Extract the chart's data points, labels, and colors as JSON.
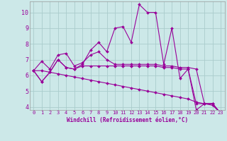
{
  "xlabel": "Windchill (Refroidissement éolien,°C)",
  "bg_color": "#cce8e8",
  "line_color": "#990099",
  "grid_color": "#aacccc",
  "xlim": [
    -0.5,
    23.5
  ],
  "ylim": [
    3.8,
    10.7
  ],
  "xticks": [
    0,
    1,
    2,
    3,
    4,
    5,
    6,
    7,
    8,
    9,
    10,
    11,
    12,
    13,
    14,
    15,
    16,
    17,
    18,
    19,
    20,
    21,
    22,
    23
  ],
  "yticks": [
    4,
    5,
    6,
    7,
    8,
    9,
    10
  ],
  "series": [
    [
      6.3,
      5.6,
      6.2,
      7.0,
      6.5,
      6.4,
      6.7,
      7.6,
      8.1,
      7.5,
      9.0,
      9.1,
      8.1,
      10.5,
      10.0,
      10.0,
      6.7,
      9.0,
      5.8,
      6.4,
      3.8,
      4.2,
      4.2,
      3.6
    ],
    [
      6.3,
      6.9,
      6.4,
      7.3,
      7.4,
      6.6,
      6.8,
      7.3,
      7.5,
      7.0,
      6.7,
      6.7,
      6.7,
      6.7,
      6.7,
      6.7,
      6.6,
      6.6,
      6.5,
      6.5,
      6.4,
      4.2,
      4.2,
      3.6
    ],
    [
      6.3,
      5.6,
      6.2,
      7.0,
      6.5,
      6.4,
      6.6,
      6.6,
      6.6,
      6.6,
      6.6,
      6.6,
      6.6,
      6.6,
      6.6,
      6.6,
      6.5,
      6.5,
      6.4,
      6.4,
      4.2,
      4.2,
      4.2,
      3.6
    ],
    [
      6.3,
      6.3,
      6.2,
      6.1,
      6.0,
      5.9,
      5.8,
      5.7,
      5.6,
      5.5,
      5.4,
      5.3,
      5.2,
      5.1,
      5.0,
      4.9,
      4.8,
      4.7,
      4.6,
      4.5,
      4.3,
      4.2,
      4.1,
      3.6
    ]
  ]
}
